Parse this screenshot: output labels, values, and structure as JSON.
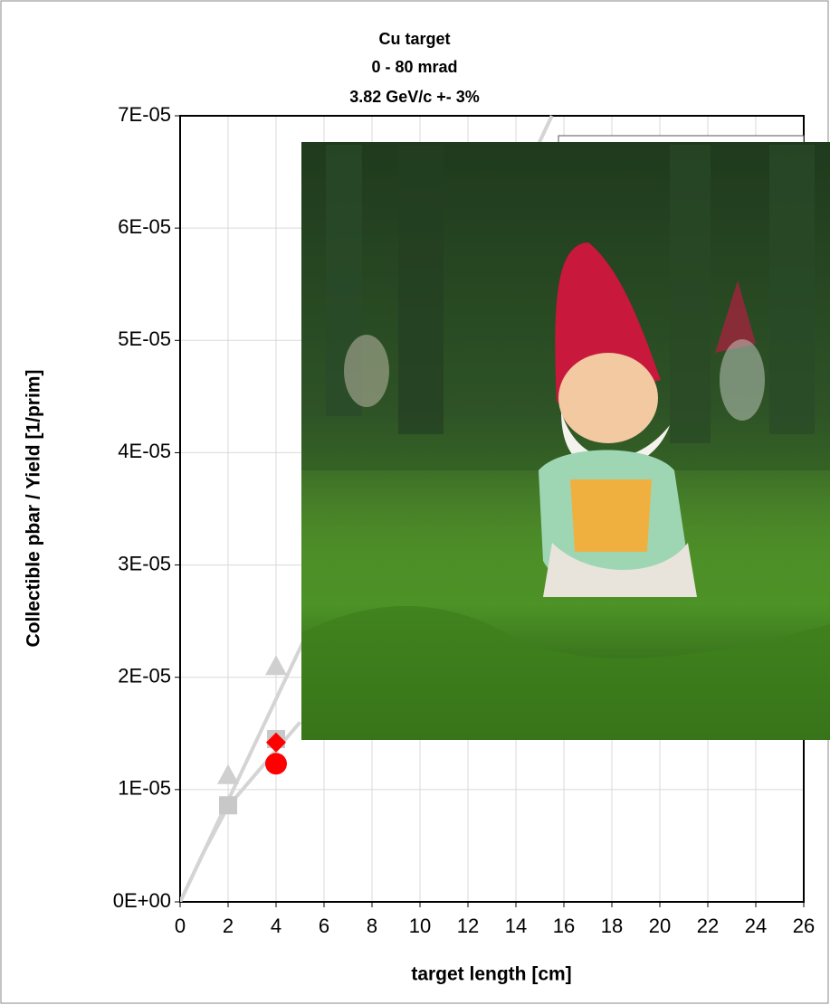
{
  "chart_data": {
    "type": "scatter",
    "title": "Cu target",
    "title_color": "#ff0000",
    "subtitle": [
      "0 - 80 mrad",
      "3.82 GeV/c +- 3%"
    ],
    "x_label": "target length [cm]",
    "y_label": "Collectible pbar / Yield [1/prim]",
    "xlim": [
      0,
      26
    ],
    "xticks": [
      0,
      2,
      4,
      6,
      8,
      10,
      12,
      14,
      16,
      18,
      20,
      22,
      24,
      26
    ],
    "ylim": [
      0,
      7e-05
    ],
    "yticks": [
      {
        "value": 0,
        "label": "0E+00"
      },
      {
        "value": 1e-05,
        "label": "1E-05"
      },
      {
        "value": 2e-05,
        "label": "2E-05"
      },
      {
        "value": 3e-05,
        "label": "3E-05"
      },
      {
        "value": 4e-05,
        "label": "4E-05"
      },
      {
        "value": 5e-05,
        "label": "5E-05"
      },
      {
        "value": 6e-05,
        "label": "6E-05"
      },
      {
        "value": 7e-05,
        "label": "7E-05"
      }
    ],
    "grid": true,
    "series": [
      {
        "marker": "line",
        "color": "#d4d4d4",
        "x": [
          0,
          15.5
        ],
        "values": [
          0,
          7e-05
        ]
      },
      {
        "marker": "line",
        "color": "#d4d4d4",
        "x": [
          0,
          1,
          2,
          4,
          5
        ],
        "values": [
          0,
          4.5e-06,
          8.5e-06,
          1.35e-05,
          1.6e-05
        ]
      },
      {
        "marker": "triangle",
        "color": "#cfcfcf",
        "x": [
          2,
          4
        ],
        "values": [
          1.13e-05,
          2.1e-05
        ]
      },
      {
        "marker": "square",
        "color": "#c8c8c8",
        "x": [
          2,
          4
        ],
        "values": [
          8.6e-06,
          1.45e-05
        ]
      },
      {
        "marker": "diamond",
        "color": "#ff0000",
        "x": [
          4
        ],
        "values": [
          1.42e-05
        ]
      },
      {
        "marker": "circle",
        "color": "#ff0000",
        "x": [
          4
        ],
        "values": [
          1.23e-05
        ]
      }
    ]
  }
}
